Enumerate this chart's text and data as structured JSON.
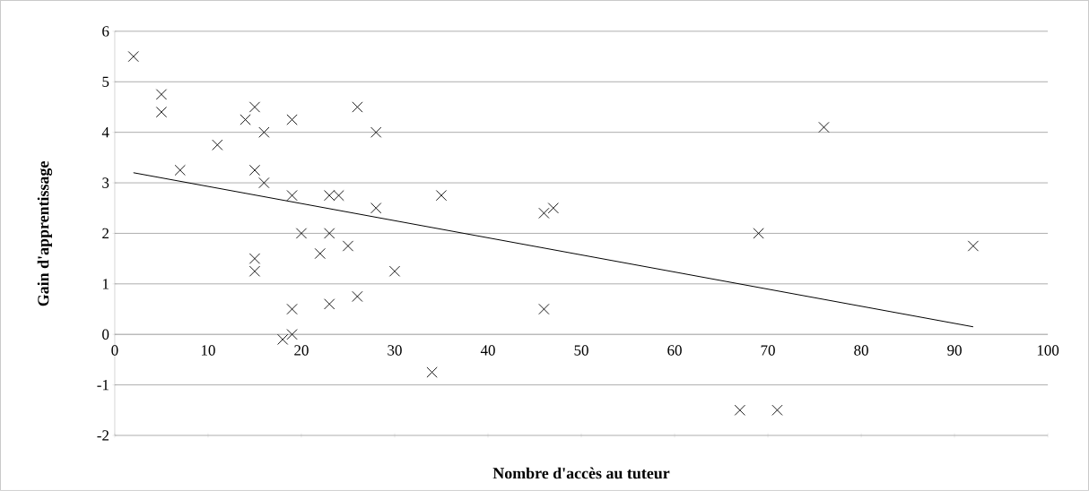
{
  "chart_data": {
    "type": "scatter",
    "xlabel": "Nombre d'accès au tuteur",
    "ylabel": "Gain d'apprentissage",
    "xlim": [
      0,
      100
    ],
    "xticks": [
      0,
      10,
      20,
      30,
      40,
      50,
      60,
      70,
      80,
      90,
      100
    ],
    "ylim": [
      -2,
      6
    ],
    "yticks": [
      -2,
      -1,
      0,
      1,
      2,
      3,
      4,
      5,
      6
    ],
    "grid": "y",
    "series": [
      {
        "marker": "cross",
        "color": "#000000",
        "x": [
          2,
          5,
          5,
          7,
          11,
          14,
          15,
          15,
          16,
          16,
          15,
          15,
          19,
          19,
          19,
          19,
          18,
          20,
          22,
          23,
          23,
          23,
          24,
          25,
          26,
          26,
          28,
          28,
          30,
          34,
          35,
          46,
          47,
          46,
          67,
          69,
          71,
          76,
          92
        ],
        "values": [
          5.5,
          4.75,
          4.4,
          3.25,
          3.75,
          4.25,
          4.5,
          3.25,
          4,
          3,
          1.5,
          1.25,
          4.25,
          2.75,
          0.5,
          0,
          -0.1,
          2,
          1.6,
          2.75,
          2,
          0.6,
          2.75,
          1.75,
          4.5,
          0.75,
          4,
          2.5,
          1.25,
          -0.75,
          2.75,
          2.4,
          2.5,
          0.5,
          -1.5,
          2,
          -1.5,
          4.1,
          1.75
        ]
      },
      {
        "type": "line",
        "marker": "none",
        "color": "#000000",
        "x": [
          2,
          92
        ],
        "values": [
          3.2,
          0.15
        ]
      }
    ]
  }
}
